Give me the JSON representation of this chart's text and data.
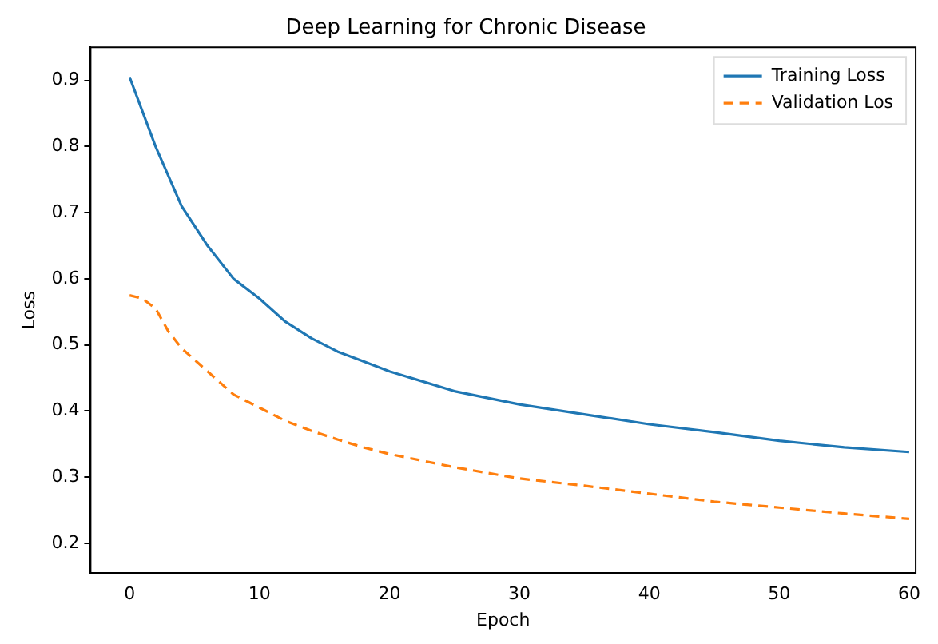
{
  "chart_data": {
    "type": "line",
    "title": "Deep Learning for Chronic Disease",
    "xlabel": "Epoch",
    "ylabel": "Loss",
    "series": [
      {
        "name": "Training Loss",
        "color": "#1f77b4",
        "line_style": "solid",
        "x": [
          0,
          2,
          4,
          6,
          8,
          10,
          12,
          14,
          16,
          18,
          20,
          25,
          30,
          35,
          40,
          45,
          50,
          55,
          60
        ],
        "values": [
          0.905,
          0.8,
          0.71,
          0.65,
          0.6,
          0.57,
          0.535,
          0.51,
          0.49,
          0.475,
          0.46,
          0.43,
          0.41,
          0.395,
          0.38,
          0.368,
          0.355,
          0.345,
          0.338
        ]
      },
      {
        "name": "Validation Los",
        "color": "#ff7f0e",
        "line_style": "dashed",
        "x": [
          0,
          1,
          2,
          3,
          4,
          6,
          8,
          10,
          12,
          14,
          16,
          18,
          20,
          25,
          30,
          35,
          40,
          45,
          50,
          55,
          60
        ],
        "values": [
          0.575,
          0.57,
          0.555,
          0.52,
          0.495,
          0.46,
          0.425,
          0.405,
          0.385,
          0.37,
          0.357,
          0.345,
          0.335,
          0.315,
          0.298,
          0.287,
          0.275,
          0.263,
          0.254,
          0.245,
          0.237
        ]
      }
    ],
    "xlim": [
      -3,
      60.5
    ],
    "xticks": [
      0,
      10,
      20,
      30,
      40,
      50,
      60
    ],
    "ylim": [
      0.155,
      0.95
    ],
    "yticks": [
      0.2,
      0.3,
      0.4,
      0.5,
      0.6,
      0.7,
      0.8,
      0.9
    ],
    "grid": false,
    "legend": "top right",
    "marker": "none"
  }
}
